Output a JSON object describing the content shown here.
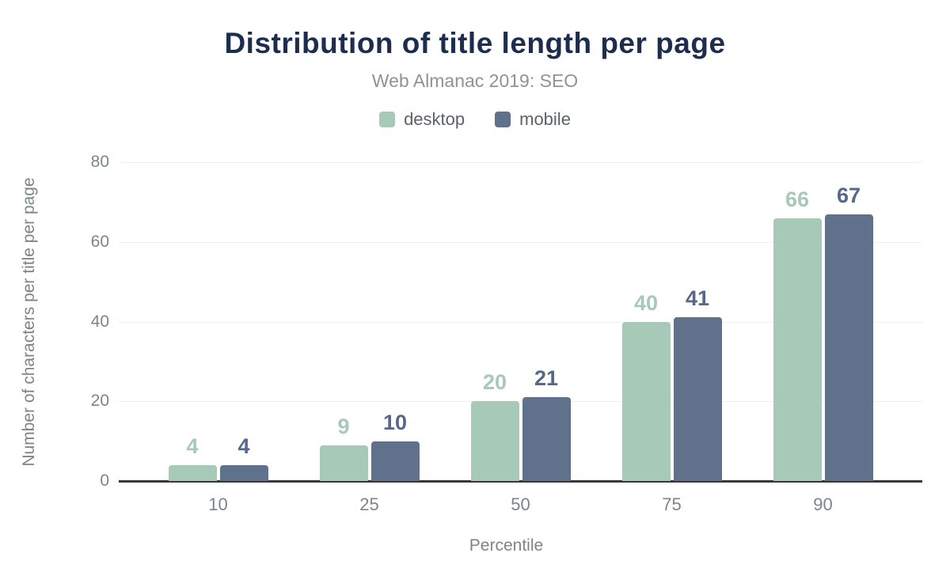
{
  "chart_data": {
    "type": "bar",
    "title": "Distribution of title length per page",
    "subtitle": "Web Almanac 2019: SEO",
    "xlabel": "Percentile",
    "ylabel": "Number of characters per title per page",
    "categories": [
      "10",
      "25",
      "50",
      "75",
      "90"
    ],
    "series": [
      {
        "name": "desktop",
        "color": "#a6c9b8",
        "label_color": "#a6c9b8",
        "values": [
          4,
          9,
          20,
          40,
          66
        ]
      },
      {
        "name": "mobile",
        "color": "#60718c",
        "label_color": "#56688a",
        "values": [
          4,
          10,
          21,
          41,
          67
        ]
      }
    ],
    "ylim": [
      0,
      80
    ],
    "y_ticks": [
      0,
      20,
      40,
      60,
      80
    ],
    "grid": true,
    "legend_position": "top",
    "colors": {
      "title": "#1d2d4e",
      "subtitle": "#8d9399",
      "axis_text": "#7c848c",
      "legend_text": "#5a626b",
      "gridline": "#f0f0f0",
      "baseline": "#36383c",
      "background": "#ffffff"
    }
  }
}
